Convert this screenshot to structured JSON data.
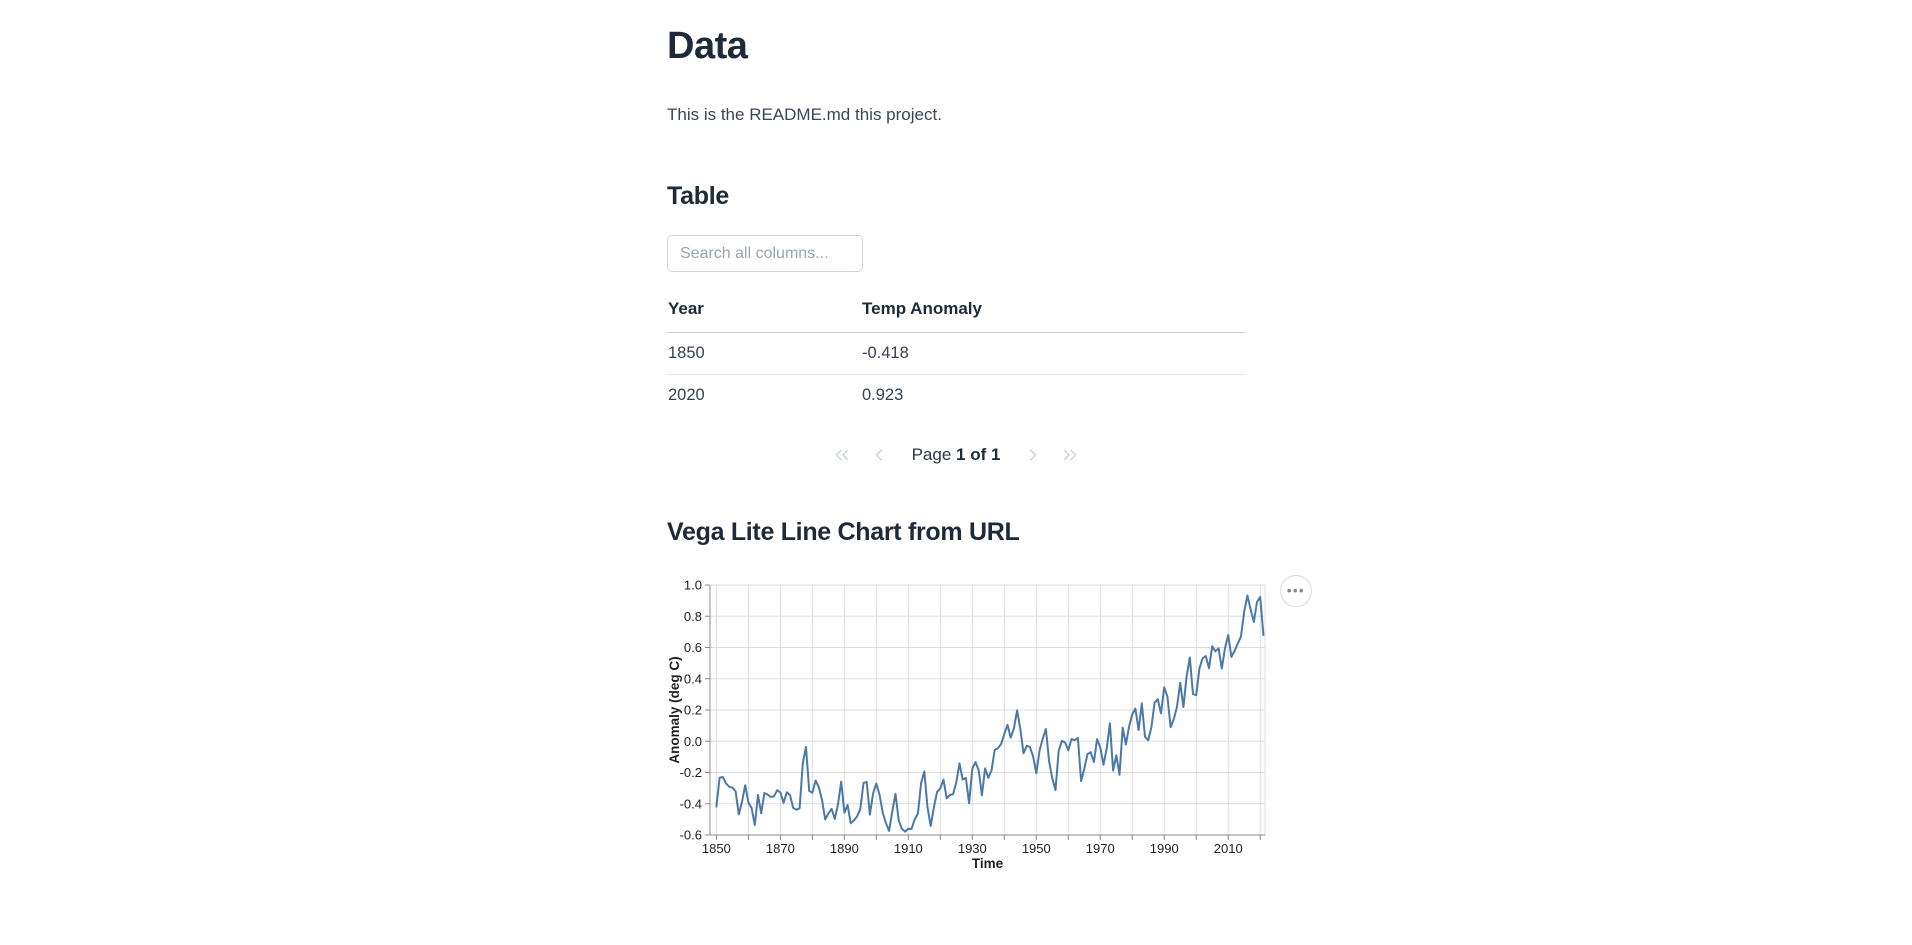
{
  "page": {
    "title": "Data",
    "readme": "This is the README.md this project."
  },
  "table_section": {
    "heading": "Table",
    "search_placeholder": "Search all columns...",
    "columns": [
      "Year",
      "Temp Anomaly"
    ],
    "rows": [
      [
        "1850",
        "-0.418"
      ],
      [
        "2020",
        "0.923"
      ]
    ],
    "pagination": {
      "page_label": "Page",
      "page_value": "1 of 1"
    }
  },
  "chart_section": {
    "heading": "Vega Lite Line Chart from URL",
    "menu_button": "•••"
  },
  "colors": {
    "heading": "#1e2939",
    "body_text": "#3b4559",
    "table_text": "#374151",
    "disabled_icon": "#cbd2dc",
    "chart_line": "#4c78a8",
    "grid": "#dddddd",
    "axis": "#888888"
  },
  "chart_data": {
    "type": "line",
    "xlabel": "Time",
    "ylabel": "Anomaly (deg C)",
    "x_domain": [
      1848,
      2021.5
    ],
    "ylim": [
      -0.6,
      1.0
    ],
    "x_major_ticks": [
      1850,
      1870,
      1890,
      1910,
      1930,
      1950,
      1970,
      1990,
      2010
    ],
    "x_tick_start": 1850,
    "x_tick_end": 2020,
    "x_minor_step": 10,
    "y_ticks": [
      -0.6,
      -0.4,
      -0.2,
      0.0,
      0.2,
      0.4,
      0.6,
      0.8,
      1.0
    ],
    "grid": true,
    "line_color": "#4c78a8",
    "series": [
      {
        "name": "Temp Anomaly",
        "x": [
          1850,
          1851,
          1852,
          1853,
          1854,
          1855,
          1856,
          1857,
          1858,
          1859,
          1860,
          1861,
          1862,
          1863,
          1864,
          1865,
          1866,
          1867,
          1868,
          1869,
          1870,
          1871,
          1872,
          1873,
          1874,
          1875,
          1876,
          1877,
          1878,
          1879,
          1880,
          1881,
          1882,
          1883,
          1884,
          1885,
          1886,
          1887,
          1888,
          1889,
          1890,
          1891,
          1892,
          1893,
          1894,
          1895,
          1896,
          1897,
          1898,
          1899,
          1900,
          1901,
          1902,
          1903,
          1904,
          1905,
          1906,
          1907,
          1908,
          1909,
          1910,
          1911,
          1912,
          1913,
          1914,
          1915,
          1916,
          1917,
          1918,
          1919,
          1920,
          1921,
          1922,
          1923,
          1924,
          1925,
          1926,
          1927,
          1928,
          1929,
          1930,
          1931,
          1932,
          1933,
          1934,
          1935,
          1936,
          1937,
          1938,
          1939,
          1940,
          1941,
          1942,
          1943,
          1944,
          1945,
          1946,
          1947,
          1948,
          1949,
          1950,
          1951,
          1952,
          1953,
          1954,
          1955,
          1956,
          1957,
          1958,
          1959,
          1960,
          1961,
          1962,
          1963,
          1964,
          1965,
          1966,
          1967,
          1968,
          1969,
          1970,
          1971,
          1972,
          1973,
          1974,
          1975,
          1976,
          1977,
          1978,
          1979,
          1980,
          1981,
          1982,
          1983,
          1984,
          1985,
          1986,
          1987,
          1988,
          1989,
          1990,
          1991,
          1992,
          1993,
          1994,
          1995,
          1996,
          1997,
          1998,
          1999,
          2000,
          2001,
          2002,
          2003,
          2004,
          2005,
          2006,
          2007,
          2008,
          2009,
          2010,
          2011,
          2012,
          2013,
          2014,
          2015,
          2016,
          2017,
          2018,
          2019,
          2020,
          2021
        ],
        "y": [
          -0.418,
          -0.233,
          -0.229,
          -0.27,
          -0.291,
          -0.297,
          -0.32,
          -0.468,
          -0.388,
          -0.281,
          -0.392,
          -0.428,
          -0.536,
          -0.344,
          -0.462,
          -0.331,
          -0.341,
          -0.357,
          -0.352,
          -0.313,
          -0.328,
          -0.394,
          -0.327,
          -0.344,
          -0.427,
          -0.438,
          -0.429,
          -0.141,
          -0.037,
          -0.317,
          -0.33,
          -0.251,
          -0.294,
          -0.374,
          -0.5,
          -0.462,
          -0.432,
          -0.497,
          -0.404,
          -0.258,
          -0.458,
          -0.408,
          -0.525,
          -0.507,
          -0.48,
          -0.435,
          -0.267,
          -0.26,
          -0.47,
          -0.333,
          -0.271,
          -0.341,
          -0.456,
          -0.524,
          -0.574,
          -0.449,
          -0.336,
          -0.506,
          -0.56,
          -0.578,
          -0.56,
          -0.561,
          -0.5,
          -0.463,
          -0.268,
          -0.193,
          -0.422,
          -0.542,
          -0.422,
          -0.324,
          -0.301,
          -0.246,
          -0.365,
          -0.344,
          -0.338,
          -0.263,
          -0.142,
          -0.245,
          -0.236,
          -0.397,
          -0.176,
          -0.133,
          -0.186,
          -0.345,
          -0.174,
          -0.234,
          -0.187,
          -0.056,
          -0.044,
          -0.018,
          0.046,
          0.105,
          0.023,
          0.083,
          0.198,
          0.08,
          -0.078,
          -0.029,
          -0.037,
          -0.096,
          -0.205,
          -0.061,
          0.016,
          0.079,
          -0.128,
          -0.237,
          -0.312,
          -0.06,
          0.002,
          -0.008,
          -0.057,
          0.014,
          0.006,
          0.021,
          -0.255,
          -0.175,
          -0.083,
          -0.07,
          -0.133,
          0.014,
          -0.04,
          -0.151,
          -0.047,
          0.115,
          -0.187,
          -0.09,
          -0.215,
          0.087,
          -0.021,
          0.091,
          0.171,
          0.209,
          0.072,
          0.242,
          0.03,
          0.006,
          0.09,
          0.246,
          0.269,
          0.178,
          0.345,
          0.287,
          0.09,
          0.142,
          0.222,
          0.375,
          0.219,
          0.415,
          0.536,
          0.302,
          0.295,
          0.465,
          0.531,
          0.545,
          0.467,
          0.608,
          0.576,
          0.595,
          0.465,
          0.596,
          0.68,
          0.54,
          0.578,
          0.626,
          0.671,
          0.829,
          0.933,
          0.845,
          0.763,
          0.891,
          0.923,
          0.68
        ]
      }
    ]
  }
}
